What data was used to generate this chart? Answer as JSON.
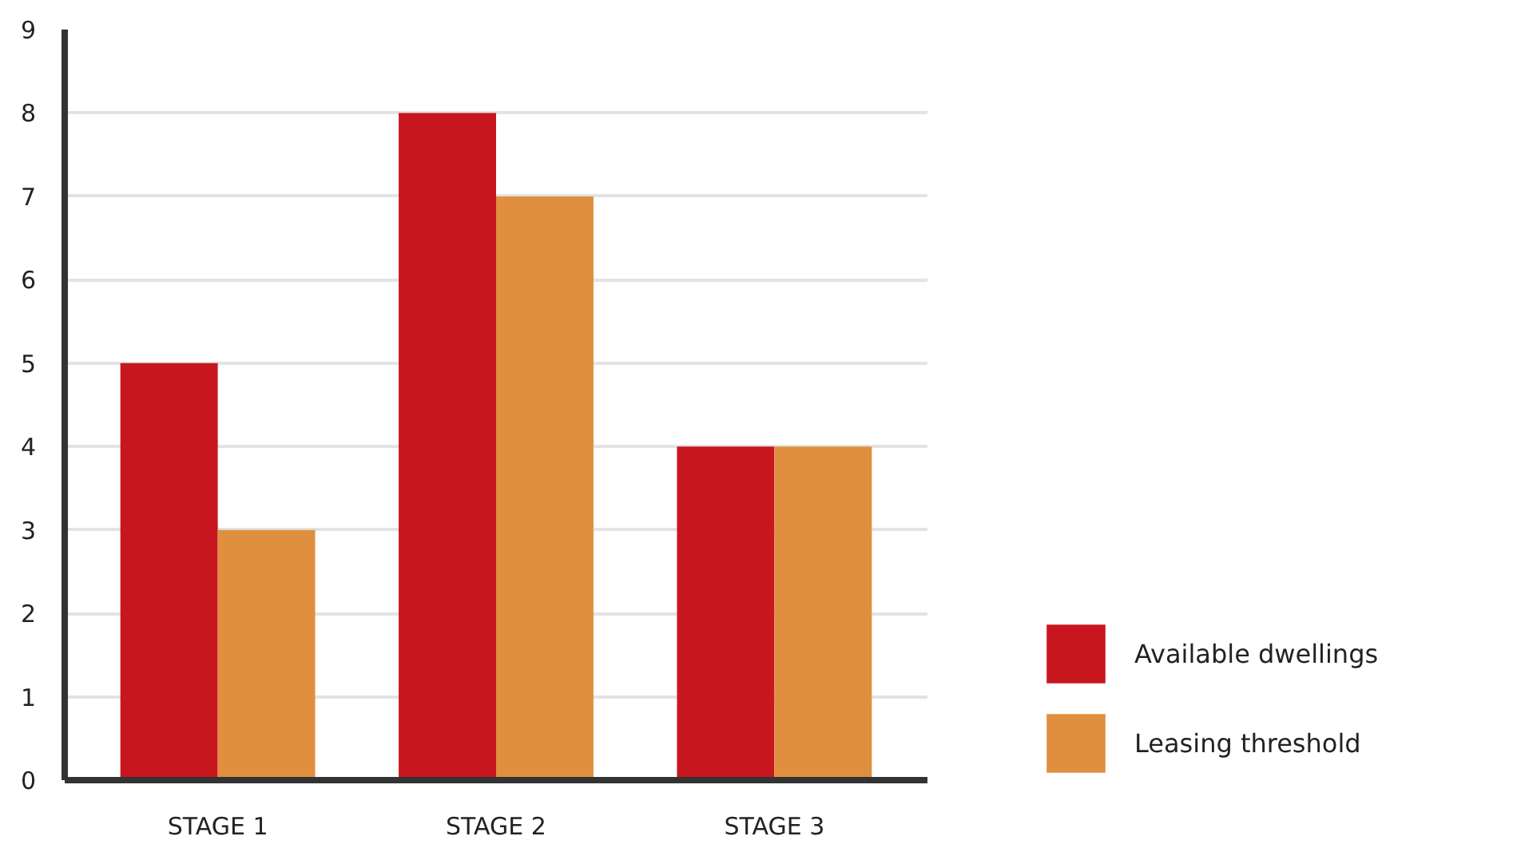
{
  "chart_data": {
    "type": "bar",
    "categories": [
      "STAGE 1",
      "STAGE 2",
      "STAGE 3"
    ],
    "series": [
      {
        "name": "Available dwellings",
        "color": "#c8161e",
        "values": [
          5,
          8,
          4
        ]
      },
      {
        "name": "Leasing threshold",
        "color": "#e08f3e",
        "values": [
          3,
          7,
          4
        ]
      }
    ],
    "ylim": [
      0,
      9
    ],
    "yticks": [
      0,
      1,
      2,
      3,
      4,
      5,
      6,
      7,
      8,
      9
    ],
    "grid": "y",
    "legend": "right"
  }
}
